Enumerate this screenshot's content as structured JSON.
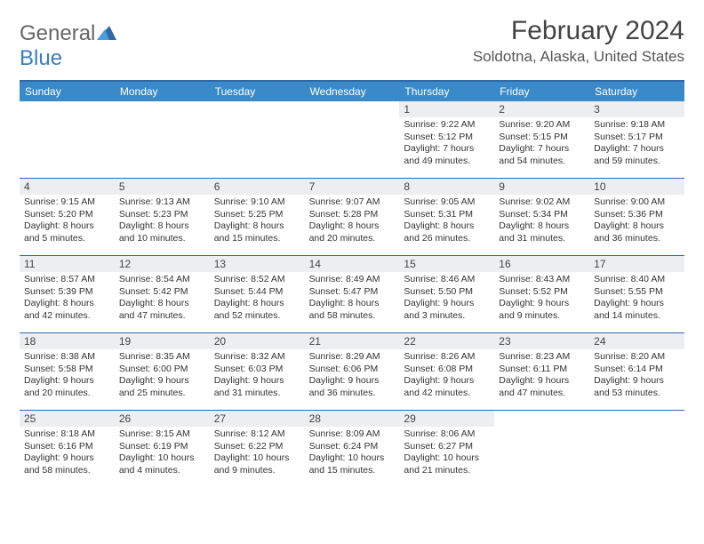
{
  "brand": {
    "part1": "General",
    "part2": "Blue"
  },
  "header": {
    "title": "February 2024",
    "subtitle": "Soldotna, Alaska, United States"
  },
  "colors": {
    "header_bg": "#3a8ac9",
    "rule": "#2f6aa8",
    "daynum_bg": "#eceeef",
    "text": "#333333",
    "brand_gray": "#666666",
    "brand_blue": "#3a7fbf"
  },
  "day_names": [
    "Sunday",
    "Monday",
    "Tuesday",
    "Wednesday",
    "Thursday",
    "Friday",
    "Saturday"
  ],
  "weeks": [
    [
      {
        "day": "",
        "sunrise": "",
        "sunset": "",
        "daylight": ""
      },
      {
        "day": "",
        "sunrise": "",
        "sunset": "",
        "daylight": ""
      },
      {
        "day": "",
        "sunrise": "",
        "sunset": "",
        "daylight": ""
      },
      {
        "day": "",
        "sunrise": "",
        "sunset": "",
        "daylight": ""
      },
      {
        "day": "1",
        "sunrise": "Sunrise: 9:22 AM",
        "sunset": "Sunset: 5:12 PM",
        "daylight": "Daylight: 7 hours and 49 minutes."
      },
      {
        "day": "2",
        "sunrise": "Sunrise: 9:20 AM",
        "sunset": "Sunset: 5:15 PM",
        "daylight": "Daylight: 7 hours and 54 minutes."
      },
      {
        "day": "3",
        "sunrise": "Sunrise: 9:18 AM",
        "sunset": "Sunset: 5:17 PM",
        "daylight": "Daylight: 7 hours and 59 minutes."
      }
    ],
    [
      {
        "day": "4",
        "sunrise": "Sunrise: 9:15 AM",
        "sunset": "Sunset: 5:20 PM",
        "daylight": "Daylight: 8 hours and 5 minutes."
      },
      {
        "day": "5",
        "sunrise": "Sunrise: 9:13 AM",
        "sunset": "Sunset: 5:23 PM",
        "daylight": "Daylight: 8 hours and 10 minutes."
      },
      {
        "day": "6",
        "sunrise": "Sunrise: 9:10 AM",
        "sunset": "Sunset: 5:25 PM",
        "daylight": "Daylight: 8 hours and 15 minutes."
      },
      {
        "day": "7",
        "sunrise": "Sunrise: 9:07 AM",
        "sunset": "Sunset: 5:28 PM",
        "daylight": "Daylight: 8 hours and 20 minutes."
      },
      {
        "day": "8",
        "sunrise": "Sunrise: 9:05 AM",
        "sunset": "Sunset: 5:31 PM",
        "daylight": "Daylight: 8 hours and 26 minutes."
      },
      {
        "day": "9",
        "sunrise": "Sunrise: 9:02 AM",
        "sunset": "Sunset: 5:34 PM",
        "daylight": "Daylight: 8 hours and 31 minutes."
      },
      {
        "day": "10",
        "sunrise": "Sunrise: 9:00 AM",
        "sunset": "Sunset: 5:36 PM",
        "daylight": "Daylight: 8 hours and 36 minutes."
      }
    ],
    [
      {
        "day": "11",
        "sunrise": "Sunrise: 8:57 AM",
        "sunset": "Sunset: 5:39 PM",
        "daylight": "Daylight: 8 hours and 42 minutes."
      },
      {
        "day": "12",
        "sunrise": "Sunrise: 8:54 AM",
        "sunset": "Sunset: 5:42 PM",
        "daylight": "Daylight: 8 hours and 47 minutes."
      },
      {
        "day": "13",
        "sunrise": "Sunrise: 8:52 AM",
        "sunset": "Sunset: 5:44 PM",
        "daylight": "Daylight: 8 hours and 52 minutes."
      },
      {
        "day": "14",
        "sunrise": "Sunrise: 8:49 AM",
        "sunset": "Sunset: 5:47 PM",
        "daylight": "Daylight: 8 hours and 58 minutes."
      },
      {
        "day": "15",
        "sunrise": "Sunrise: 8:46 AM",
        "sunset": "Sunset: 5:50 PM",
        "daylight": "Daylight: 9 hours and 3 minutes."
      },
      {
        "day": "16",
        "sunrise": "Sunrise: 8:43 AM",
        "sunset": "Sunset: 5:52 PM",
        "daylight": "Daylight: 9 hours and 9 minutes."
      },
      {
        "day": "17",
        "sunrise": "Sunrise: 8:40 AM",
        "sunset": "Sunset: 5:55 PM",
        "daylight": "Daylight: 9 hours and 14 minutes."
      }
    ],
    [
      {
        "day": "18",
        "sunrise": "Sunrise: 8:38 AM",
        "sunset": "Sunset: 5:58 PM",
        "daylight": "Daylight: 9 hours and 20 minutes."
      },
      {
        "day": "19",
        "sunrise": "Sunrise: 8:35 AM",
        "sunset": "Sunset: 6:00 PM",
        "daylight": "Daylight: 9 hours and 25 minutes."
      },
      {
        "day": "20",
        "sunrise": "Sunrise: 8:32 AM",
        "sunset": "Sunset: 6:03 PM",
        "daylight": "Daylight: 9 hours and 31 minutes."
      },
      {
        "day": "21",
        "sunrise": "Sunrise: 8:29 AM",
        "sunset": "Sunset: 6:06 PM",
        "daylight": "Daylight: 9 hours and 36 minutes."
      },
      {
        "day": "22",
        "sunrise": "Sunrise: 8:26 AM",
        "sunset": "Sunset: 6:08 PM",
        "daylight": "Daylight: 9 hours and 42 minutes."
      },
      {
        "day": "23",
        "sunrise": "Sunrise: 8:23 AM",
        "sunset": "Sunset: 6:11 PM",
        "daylight": "Daylight: 9 hours and 47 minutes."
      },
      {
        "day": "24",
        "sunrise": "Sunrise: 8:20 AM",
        "sunset": "Sunset: 6:14 PM",
        "daylight": "Daylight: 9 hours and 53 minutes."
      }
    ],
    [
      {
        "day": "25",
        "sunrise": "Sunrise: 8:18 AM",
        "sunset": "Sunset: 6:16 PM",
        "daylight": "Daylight: 9 hours and 58 minutes."
      },
      {
        "day": "26",
        "sunrise": "Sunrise: 8:15 AM",
        "sunset": "Sunset: 6:19 PM",
        "daylight": "Daylight: 10 hours and 4 minutes."
      },
      {
        "day": "27",
        "sunrise": "Sunrise: 8:12 AM",
        "sunset": "Sunset: 6:22 PM",
        "daylight": "Daylight: 10 hours and 9 minutes."
      },
      {
        "day": "28",
        "sunrise": "Sunrise: 8:09 AM",
        "sunset": "Sunset: 6:24 PM",
        "daylight": "Daylight: 10 hours and 15 minutes."
      },
      {
        "day": "29",
        "sunrise": "Sunrise: 8:06 AM",
        "sunset": "Sunset: 6:27 PM",
        "daylight": "Daylight: 10 hours and 21 minutes."
      },
      {
        "day": "",
        "sunrise": "",
        "sunset": "",
        "daylight": ""
      },
      {
        "day": "",
        "sunrise": "",
        "sunset": "",
        "daylight": ""
      }
    ]
  ]
}
